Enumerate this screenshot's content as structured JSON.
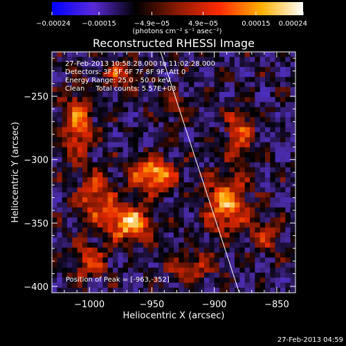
{
  "chart_data": {
    "type": "heatmap",
    "title": "Reconstructed RHESSI Image",
    "xlabel": "Heliocentric X (arcsec)",
    "ylabel": "Heliocentric Y (arcsec)",
    "xlim": [
      -1030,
      -835
    ],
    "ylim": [
      -405,
      -215
    ],
    "x_ticks": [
      {
        "value": -1000,
        "label": "−1000"
      },
      {
        "value": -950,
        "label": "−950"
      },
      {
        "value": -900,
        "label": "−900"
      },
      {
        "value": -850,
        "label": "−850"
      }
    ],
    "y_ticks": [
      {
        "value": -250,
        "label": "−250"
      },
      {
        "value": -300,
        "label": "−300"
      },
      {
        "value": -350,
        "label": "−350"
      },
      {
        "value": -400,
        "label": "−400"
      }
    ],
    "colorbar": {
      "range": [
        -0.00024,
        0.00024
      ],
      "ticks": [
        {
          "value": -0.00024,
          "label": "−0.00024"
        },
        {
          "value": -0.00015,
          "label": "−0.00015"
        },
        {
          "value": -4.9e-05,
          "label": "−4.9e−05"
        },
        {
          "value": 4.9e-05,
          "label": "4.9e−05"
        },
        {
          "value": 0.00015,
          "label": "0.00015"
        },
        {
          "value": 0.00024,
          "label": "0.00024"
        }
      ],
      "unit_label": "(photons cm⁻² s⁻¹ asec⁻²)",
      "stops": [
        "#0000ff",
        "#5a2ad8",
        "#000000",
        "#8a1a00",
        "#ff2a00",
        "#ffb000",
        "#ffffff"
      ]
    },
    "info_lines": [
      "27-Feb-2013 10:58:28.000 to 11:02:28.000",
      "Detectors: 3F 5F 6F 7F 8F 9F, Att 0",
      "Energy Range: 25.0 - 50.0 keV",
      "Clean     Total counts: 5.57E+03"
    ],
    "peak_text": "Position of Peak = [-963,-352]",
    "limb_line": [
      {
        "x": -943,
        "y": -215
      },
      {
        "x": -880,
        "y": -405
      }
    ],
    "sources": [
      {
        "x": -968,
        "y": -350,
        "sx": 12,
        "sy": 10,
        "amp": 1.0
      },
      {
        "x": -948,
        "y": -312,
        "sx": 12,
        "sy": 9,
        "amp": 0.95
      },
      {
        "x": -890,
        "y": -335,
        "sx": 12,
        "sy": 16,
        "amp": 0.8
      },
      {
        "x": -1010,
        "y": -272,
        "sx": 9,
        "sy": 18,
        "amp": 0.7
      },
      {
        "x": -995,
        "y": -330,
        "sx": 10,
        "sy": 14,
        "amp": 0.6
      },
      {
        "x": -1000,
        "y": -380,
        "sx": 10,
        "sy": 10,
        "amp": 0.55
      },
      {
        "x": -880,
        "y": -280,
        "sx": 8,
        "sy": 14,
        "amp": 0.6
      },
      {
        "x": -975,
        "y": -233,
        "sx": 10,
        "sy": 8,
        "amp": 0.5
      },
      {
        "x": -920,
        "y": -385,
        "sx": 14,
        "sy": 8,
        "amp": 0.5
      },
      {
        "x": -860,
        "y": -360,
        "sx": 8,
        "sy": 10,
        "amp": 0.4
      },
      {
        "x": -930,
        "y": -260,
        "sx": 8,
        "sy": 8,
        "amp": 0.35
      }
    ]
  },
  "footer": {
    "timestamp": "27-Feb-2013 04:59"
  }
}
